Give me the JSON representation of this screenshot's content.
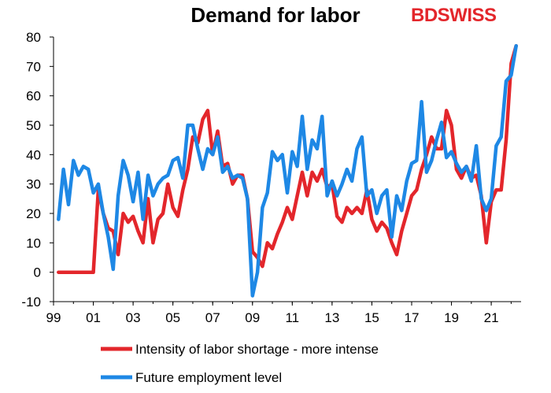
{
  "chart_data": {
    "type": "line",
    "title": "Demand for labor",
    "brand": {
      "part1": "BD",
      "part2": "SWISS"
    },
    "ylim": [
      -10,
      80
    ],
    "yticks": [
      -10,
      0,
      10,
      20,
      30,
      40,
      50,
      60,
      70,
      80
    ],
    "xlim": [
      1999,
      2022.5
    ],
    "xticks": [
      {
        "value": 1999,
        "label": "99"
      },
      {
        "value": 2001,
        "label": "01"
      },
      {
        "value": 2003,
        "label": "03"
      },
      {
        "value": 2005,
        "label": "05"
      },
      {
        "value": 2007,
        "label": "07"
      },
      {
        "value": 2009,
        "label": "09"
      },
      {
        "value": 2011,
        "label": "11"
      },
      {
        "value": 2013,
        "label": "13"
      },
      {
        "value": 2015,
        "label": "15"
      },
      {
        "value": 2017,
        "label": "17"
      },
      {
        "value": 2019,
        "label": "19"
      },
      {
        "value": 2021,
        "label": "21"
      }
    ],
    "legend_position": "bottom",
    "series": [
      {
        "name": "Intensity of labor shortage - more intense",
        "color": "#e3262b",
        "points": [
          [
            1999.25,
            0
          ],
          [
            1999.5,
            0
          ],
          [
            1999.75,
            0
          ],
          [
            2000.0,
            0
          ],
          [
            2000.25,
            0
          ],
          [
            2000.5,
            0
          ],
          [
            2000.75,
            0
          ],
          [
            2001.0,
            0
          ],
          [
            2001.25,
            28
          ],
          [
            2001.5,
            20
          ],
          [
            2001.75,
            15
          ],
          [
            2002.0,
            14
          ],
          [
            2002.25,
            6
          ],
          [
            2002.5,
            20
          ],
          [
            2002.75,
            17
          ],
          [
            2003.0,
            19
          ],
          [
            2003.25,
            14
          ],
          [
            2003.5,
            10
          ],
          [
            2003.75,
            25
          ],
          [
            2004.0,
            10
          ],
          [
            2004.25,
            18
          ],
          [
            2004.5,
            20
          ],
          [
            2004.75,
            30
          ],
          [
            2005.0,
            22
          ],
          [
            2005.25,
            19
          ],
          [
            2005.5,
            28
          ],
          [
            2005.75,
            35
          ],
          [
            2006.0,
            46
          ],
          [
            2006.25,
            44
          ],
          [
            2006.5,
            52
          ],
          [
            2006.75,
            55
          ],
          [
            2007.0,
            40
          ],
          [
            2007.25,
            48
          ],
          [
            2007.5,
            36
          ],
          [
            2007.75,
            37
          ],
          [
            2008.0,
            30
          ],
          [
            2008.25,
            33
          ],
          [
            2008.5,
            33
          ],
          [
            2008.75,
            25
          ],
          [
            2009.0,
            7
          ],
          [
            2009.25,
            5
          ],
          [
            2009.5,
            2
          ],
          [
            2009.75,
            10
          ],
          [
            2010.0,
            8
          ],
          [
            2010.25,
            13
          ],
          [
            2010.5,
            17
          ],
          [
            2010.75,
            22
          ],
          [
            2011.0,
            18
          ],
          [
            2011.25,
            26
          ],
          [
            2011.5,
            34
          ],
          [
            2011.75,
            26
          ],
          [
            2012.0,
            34
          ],
          [
            2012.25,
            31
          ],
          [
            2012.5,
            35
          ],
          [
            2012.75,
            29
          ],
          [
            2013.0,
            30
          ],
          [
            2013.25,
            19
          ],
          [
            2013.5,
            17
          ],
          [
            2013.75,
            22
          ],
          [
            2014.0,
            20
          ],
          [
            2014.25,
            22
          ],
          [
            2014.5,
            20
          ],
          [
            2014.75,
            28
          ],
          [
            2015.0,
            18
          ],
          [
            2015.25,
            14
          ],
          [
            2015.5,
            17
          ],
          [
            2015.75,
            15
          ],
          [
            2016.0,
            10
          ],
          [
            2016.25,
            6
          ],
          [
            2016.5,
            14
          ],
          [
            2016.75,
            20
          ],
          [
            2017.0,
            26
          ],
          [
            2017.25,
            28
          ],
          [
            2017.5,
            35
          ],
          [
            2017.75,
            40
          ],
          [
            2018.0,
            46
          ],
          [
            2018.25,
            42
          ],
          [
            2018.5,
            42
          ],
          [
            2018.75,
            55
          ],
          [
            2019.0,
            50
          ],
          [
            2019.25,
            35
          ],
          [
            2019.5,
            32
          ],
          [
            2019.75,
            36
          ],
          [
            2020.0,
            32
          ],
          [
            2020.25,
            33
          ],
          [
            2020.5,
            26
          ],
          [
            2020.75,
            10
          ],
          [
            2021.0,
            24
          ],
          [
            2021.25,
            28
          ],
          [
            2021.5,
            28
          ],
          [
            2021.75,
            45
          ],
          [
            2022.0,
            71
          ],
          [
            2022.25,
            77
          ]
        ]
      },
      {
        "name": "Future employment level",
        "color": "#1e88e5",
        "points": [
          [
            1999.25,
            18
          ],
          [
            1999.5,
            35
          ],
          [
            1999.75,
            23
          ],
          [
            2000.0,
            38
          ],
          [
            2000.25,
            33
          ],
          [
            2000.5,
            36
          ],
          [
            2000.75,
            35
          ],
          [
            2001.0,
            27
          ],
          [
            2001.25,
            30
          ],
          [
            2001.5,
            20
          ],
          [
            2001.75,
            12
          ],
          [
            2002.0,
            1
          ],
          [
            2002.25,
            26
          ],
          [
            2002.5,
            38
          ],
          [
            2002.75,
            33
          ],
          [
            2003.0,
            24
          ],
          [
            2003.25,
            34
          ],
          [
            2003.5,
            18
          ],
          [
            2003.75,
            33
          ],
          [
            2004.0,
            26
          ],
          [
            2004.25,
            30
          ],
          [
            2004.5,
            32
          ],
          [
            2004.75,
            33
          ],
          [
            2005.0,
            38
          ],
          [
            2005.25,
            39
          ],
          [
            2005.5,
            32
          ],
          [
            2005.75,
            50
          ],
          [
            2006.0,
            50
          ],
          [
            2006.25,
            42
          ],
          [
            2006.5,
            35
          ],
          [
            2006.75,
            42
          ],
          [
            2007.0,
            40
          ],
          [
            2007.25,
            46
          ],
          [
            2007.5,
            34
          ],
          [
            2007.75,
            36
          ],
          [
            2008.0,
            32
          ],
          [
            2008.25,
            33
          ],
          [
            2008.5,
            32
          ],
          [
            2008.75,
            25
          ],
          [
            2009.0,
            -8
          ],
          [
            2009.25,
            0
          ],
          [
            2009.5,
            22
          ],
          [
            2009.75,
            27
          ],
          [
            2010.0,
            41
          ],
          [
            2010.25,
            38
          ],
          [
            2010.5,
            40
          ],
          [
            2010.75,
            27
          ],
          [
            2011.0,
            41
          ],
          [
            2011.25,
            36
          ],
          [
            2011.5,
            53
          ],
          [
            2011.75,
            35
          ],
          [
            2012.0,
            45
          ],
          [
            2012.25,
            42
          ],
          [
            2012.5,
            53
          ],
          [
            2012.75,
            26
          ],
          [
            2013.0,
            31
          ],
          [
            2013.25,
            26
          ],
          [
            2013.5,
            30
          ],
          [
            2013.75,
            35
          ],
          [
            2014.0,
            31
          ],
          [
            2014.25,
            42
          ],
          [
            2014.5,
            46
          ],
          [
            2014.75,
            26
          ],
          [
            2015.0,
            28
          ],
          [
            2015.25,
            20
          ],
          [
            2015.5,
            26
          ],
          [
            2015.75,
            28
          ],
          [
            2016.0,
            12
          ],
          [
            2016.25,
            26
          ],
          [
            2016.5,
            21
          ],
          [
            2016.75,
            31
          ],
          [
            2017.0,
            37
          ],
          [
            2017.25,
            38
          ],
          [
            2017.5,
            58
          ],
          [
            2017.75,
            34
          ],
          [
            2018.0,
            38
          ],
          [
            2018.25,
            45
          ],
          [
            2018.5,
            51
          ],
          [
            2018.75,
            39
          ],
          [
            2019.0,
            41
          ],
          [
            2019.25,
            37
          ],
          [
            2019.5,
            34
          ],
          [
            2019.75,
            36
          ],
          [
            2020.0,
            31
          ],
          [
            2020.25,
            43
          ],
          [
            2020.5,
            25
          ],
          [
            2020.75,
            21
          ],
          [
            2021.0,
            25
          ],
          [
            2021.25,
            43
          ],
          [
            2021.5,
            46
          ],
          [
            2021.75,
            65
          ],
          [
            2022.0,
            67
          ],
          [
            2022.25,
            77
          ]
        ]
      }
    ]
  }
}
